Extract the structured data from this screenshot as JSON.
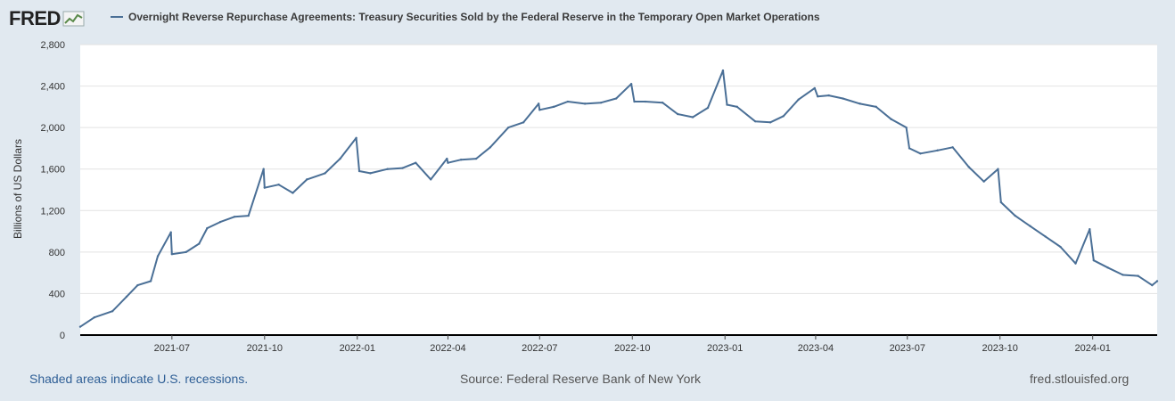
{
  "logo": {
    "text": "FRED",
    "icon": "chart-line-icon"
  },
  "chart_data": {
    "type": "line",
    "title": "Overnight Reverse Repurchase Agreements: Treasury Securities Sold by the Federal Reserve in the Temporary Open Market Operations",
    "xlabel": "",
    "ylabel": "Billions of US Dollars",
    "ylim": [
      0,
      2800
    ],
    "yticks": [
      0,
      400,
      800,
      1200,
      1600,
      2000,
      2400,
      2800
    ],
    "ytick_labels": [
      "0",
      "400",
      "800",
      "1,200",
      "1,600",
      "2,000",
      "2,400",
      "2,800"
    ],
    "xtick_labels": [
      "2021-07",
      "2021-10",
      "2022-01",
      "2022-04",
      "2022-07",
      "2022-10",
      "2023-01",
      "2023-04",
      "2023-07",
      "2023-10",
      "2024-01"
    ],
    "xlim": [
      "2021-04-01",
      "2024-03-05"
    ],
    "grid": true,
    "line_color": "#4a6f96",
    "series": [
      {
        "name": "Overnight Reverse Repurchase Agreements: Treasury Securities Sold by the Federal Reserve in the Temporary Open Market Operations",
        "x": [
          "2021-04-01",
          "2021-04-15",
          "2021-05-03",
          "2021-05-17",
          "2021-05-28",
          "2021-06-10",
          "2021-06-17",
          "2021-06-30",
          "2021-07-01",
          "2021-07-15",
          "2021-07-28",
          "2021-08-05",
          "2021-08-18",
          "2021-09-01",
          "2021-09-15",
          "2021-09-30",
          "2021-10-01",
          "2021-10-15",
          "2021-10-29",
          "2021-11-12",
          "2021-11-30",
          "2021-12-15",
          "2021-12-31",
          "2022-01-03",
          "2022-01-14",
          "2022-01-31",
          "2022-02-15",
          "2022-02-28",
          "2022-03-15",
          "2022-03-31",
          "2022-04-01",
          "2022-04-14",
          "2022-04-29",
          "2022-05-13",
          "2022-05-31",
          "2022-06-15",
          "2022-06-30",
          "2022-07-01",
          "2022-07-15",
          "2022-07-29",
          "2022-08-15",
          "2022-08-31",
          "2022-09-15",
          "2022-09-30",
          "2022-10-03",
          "2022-10-14",
          "2022-10-31",
          "2022-11-15",
          "2022-11-30",
          "2022-12-15",
          "2022-12-30",
          "2023-01-03",
          "2023-01-13",
          "2023-01-31",
          "2023-02-15",
          "2023-02-28",
          "2023-03-15",
          "2023-03-31",
          "2023-04-03",
          "2023-04-14",
          "2023-04-28",
          "2023-05-15",
          "2023-05-31",
          "2023-06-15",
          "2023-06-30",
          "2023-07-03",
          "2023-07-14",
          "2023-07-31",
          "2023-08-15",
          "2023-08-31",
          "2023-09-15",
          "2023-09-29",
          "2023-10-02",
          "2023-10-16",
          "2023-10-31",
          "2023-11-15",
          "2023-11-30",
          "2023-12-15",
          "2023-12-29",
          "2024-01-02",
          "2024-01-16",
          "2024-01-31",
          "2024-02-15",
          "2024-02-29",
          "2024-03-05"
        ],
        "values": [
          80,
          170,
          230,
          370,
          480,
          520,
          760,
          990,
          780,
          800,
          880,
          1030,
          1090,
          1140,
          1150,
          1600,
          1420,
          1450,
          1370,
          1500,
          1560,
          1700,
          1900,
          1580,
          1560,
          1600,
          1610,
          1660,
          1500,
          1700,
          1660,
          1690,
          1700,
          1810,
          2000,
          2050,
          2230,
          2170,
          2200,
          2250,
          2230,
          2240,
          2280,
          2420,
          2250,
          2250,
          2240,
          2130,
          2100,
          2190,
          2550,
          2220,
          2200,
          2060,
          2050,
          2110,
          2270,
          2380,
          2300,
          2310,
          2280,
          2230,
          2200,
          2080,
          2000,
          1800,
          1750,
          1780,
          1810,
          1620,
          1480,
          1600,
          1280,
          1150,
          1050,
          950,
          850,
          690,
          1020,
          720,
          650,
          580,
          570,
          480,
          520
        ]
      }
    ]
  },
  "footer": {
    "recession_note": "Shaded areas indicate U.S. recessions.",
    "source": "Source: Federal Reserve Bank of New York",
    "site": "fred.stlouisfed.org"
  }
}
